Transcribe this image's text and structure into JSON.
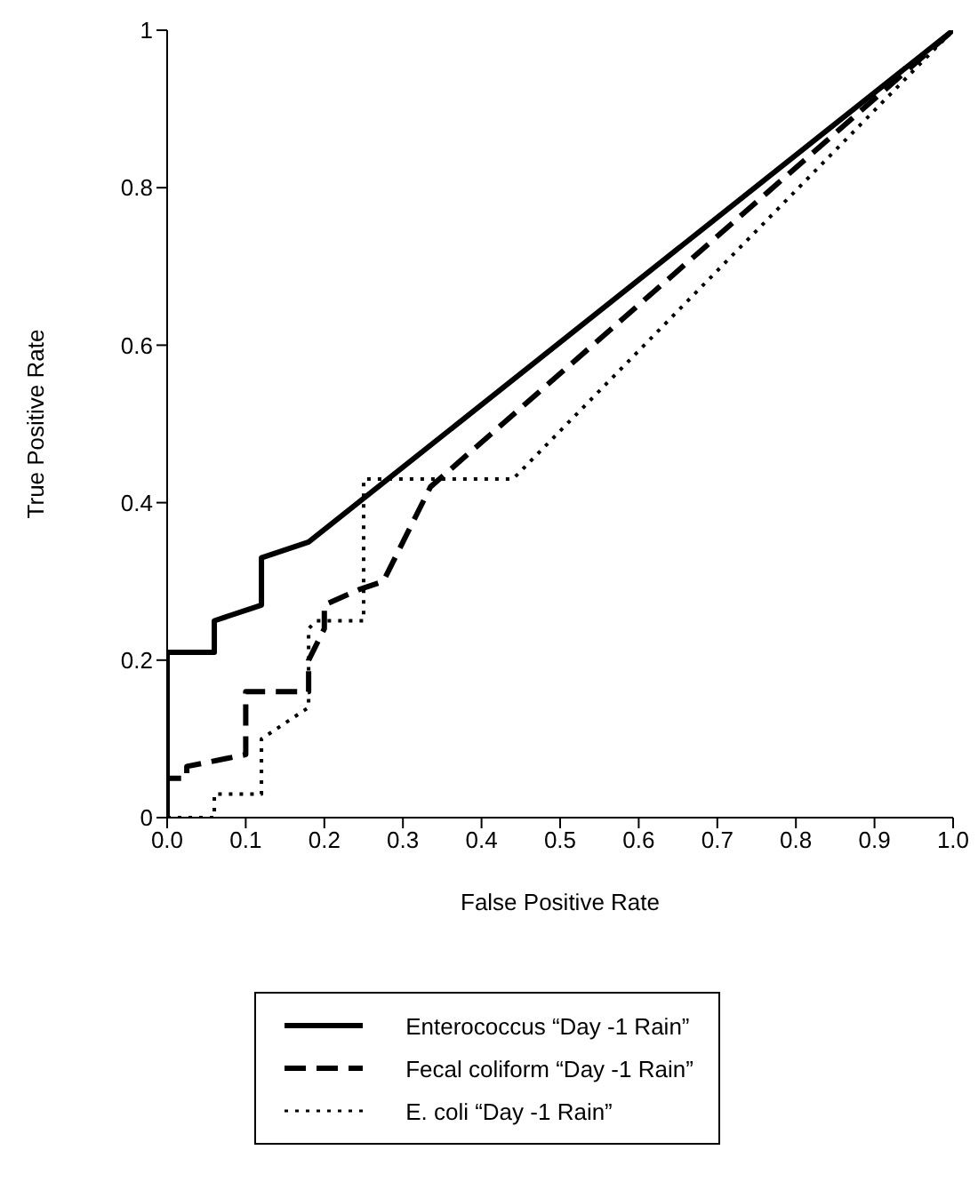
{
  "chart_data": {
    "type": "line",
    "xlabel": "False Positive Rate",
    "ylabel": "True Positive Rate",
    "xlim": [
      0,
      1
    ],
    "ylim": [
      0,
      1
    ],
    "xticks": [
      {
        "value": 0,
        "label": "0.0"
      },
      {
        "value": 0.1,
        "label": "0.1"
      },
      {
        "value": 0.2,
        "label": "0.2"
      },
      {
        "value": 0.3,
        "label": "0.3"
      },
      {
        "value": 0.4,
        "label": "0.4"
      },
      {
        "value": 0.5,
        "label": "0.5"
      },
      {
        "value": 0.6,
        "label": "0.6"
      },
      {
        "value": 0.7,
        "label": "0.7"
      },
      {
        "value": 0.8,
        "label": "0.8"
      },
      {
        "value": 0.9,
        "label": "0.9"
      },
      {
        "value": 1,
        "label": "1.0"
      }
    ],
    "yticks": [
      0,
      0.2,
      0.4,
      0.6,
      0.8,
      1
    ],
    "grid": false,
    "legend": "bottom",
    "marker": "none",
    "series": [
      {
        "name": "Enterococcus “Day -1 Rain”",
        "color": "#000000",
        "line_style": "solid",
        "x": [
          0,
          0,
          0.06,
          0.06,
          0.12,
          0.12,
          0.18,
          1
        ],
        "values": [
          0,
          0.21,
          0.21,
          0.25,
          0.27,
          0.33,
          0.35,
          1
        ]
      },
      {
        "name": "Fecal coliform “Day -1 Rain”",
        "color": "#000000",
        "line_style": "dashed",
        "x": [
          0,
          0,
          0.025,
          0.025,
          0.075,
          0.1,
          0.1,
          0.18,
          0.18,
          0.2,
          0.2,
          0.245,
          0.275,
          0.335,
          1
        ],
        "values": [
          0,
          0.05,
          0.05,
          0.065,
          0.075,
          0.08,
          0.16,
          0.16,
          0.2,
          0.24,
          0.27,
          0.29,
          0.3,
          0.42,
          1
        ]
      },
      {
        "name": "E. coli “Day -1 Rain”",
        "color": "#000000",
        "line_style": "dotted",
        "x": [
          0,
          0.06,
          0.06,
          0.12,
          0.12,
          0.18,
          0.18,
          0.19,
          0.25,
          0.25,
          0.44,
          1
        ],
        "values": [
          0,
          0,
          0.03,
          0.03,
          0.1,
          0.14,
          0.24,
          0.25,
          0.25,
          0.43,
          0.43,
          1
        ]
      }
    ]
  }
}
